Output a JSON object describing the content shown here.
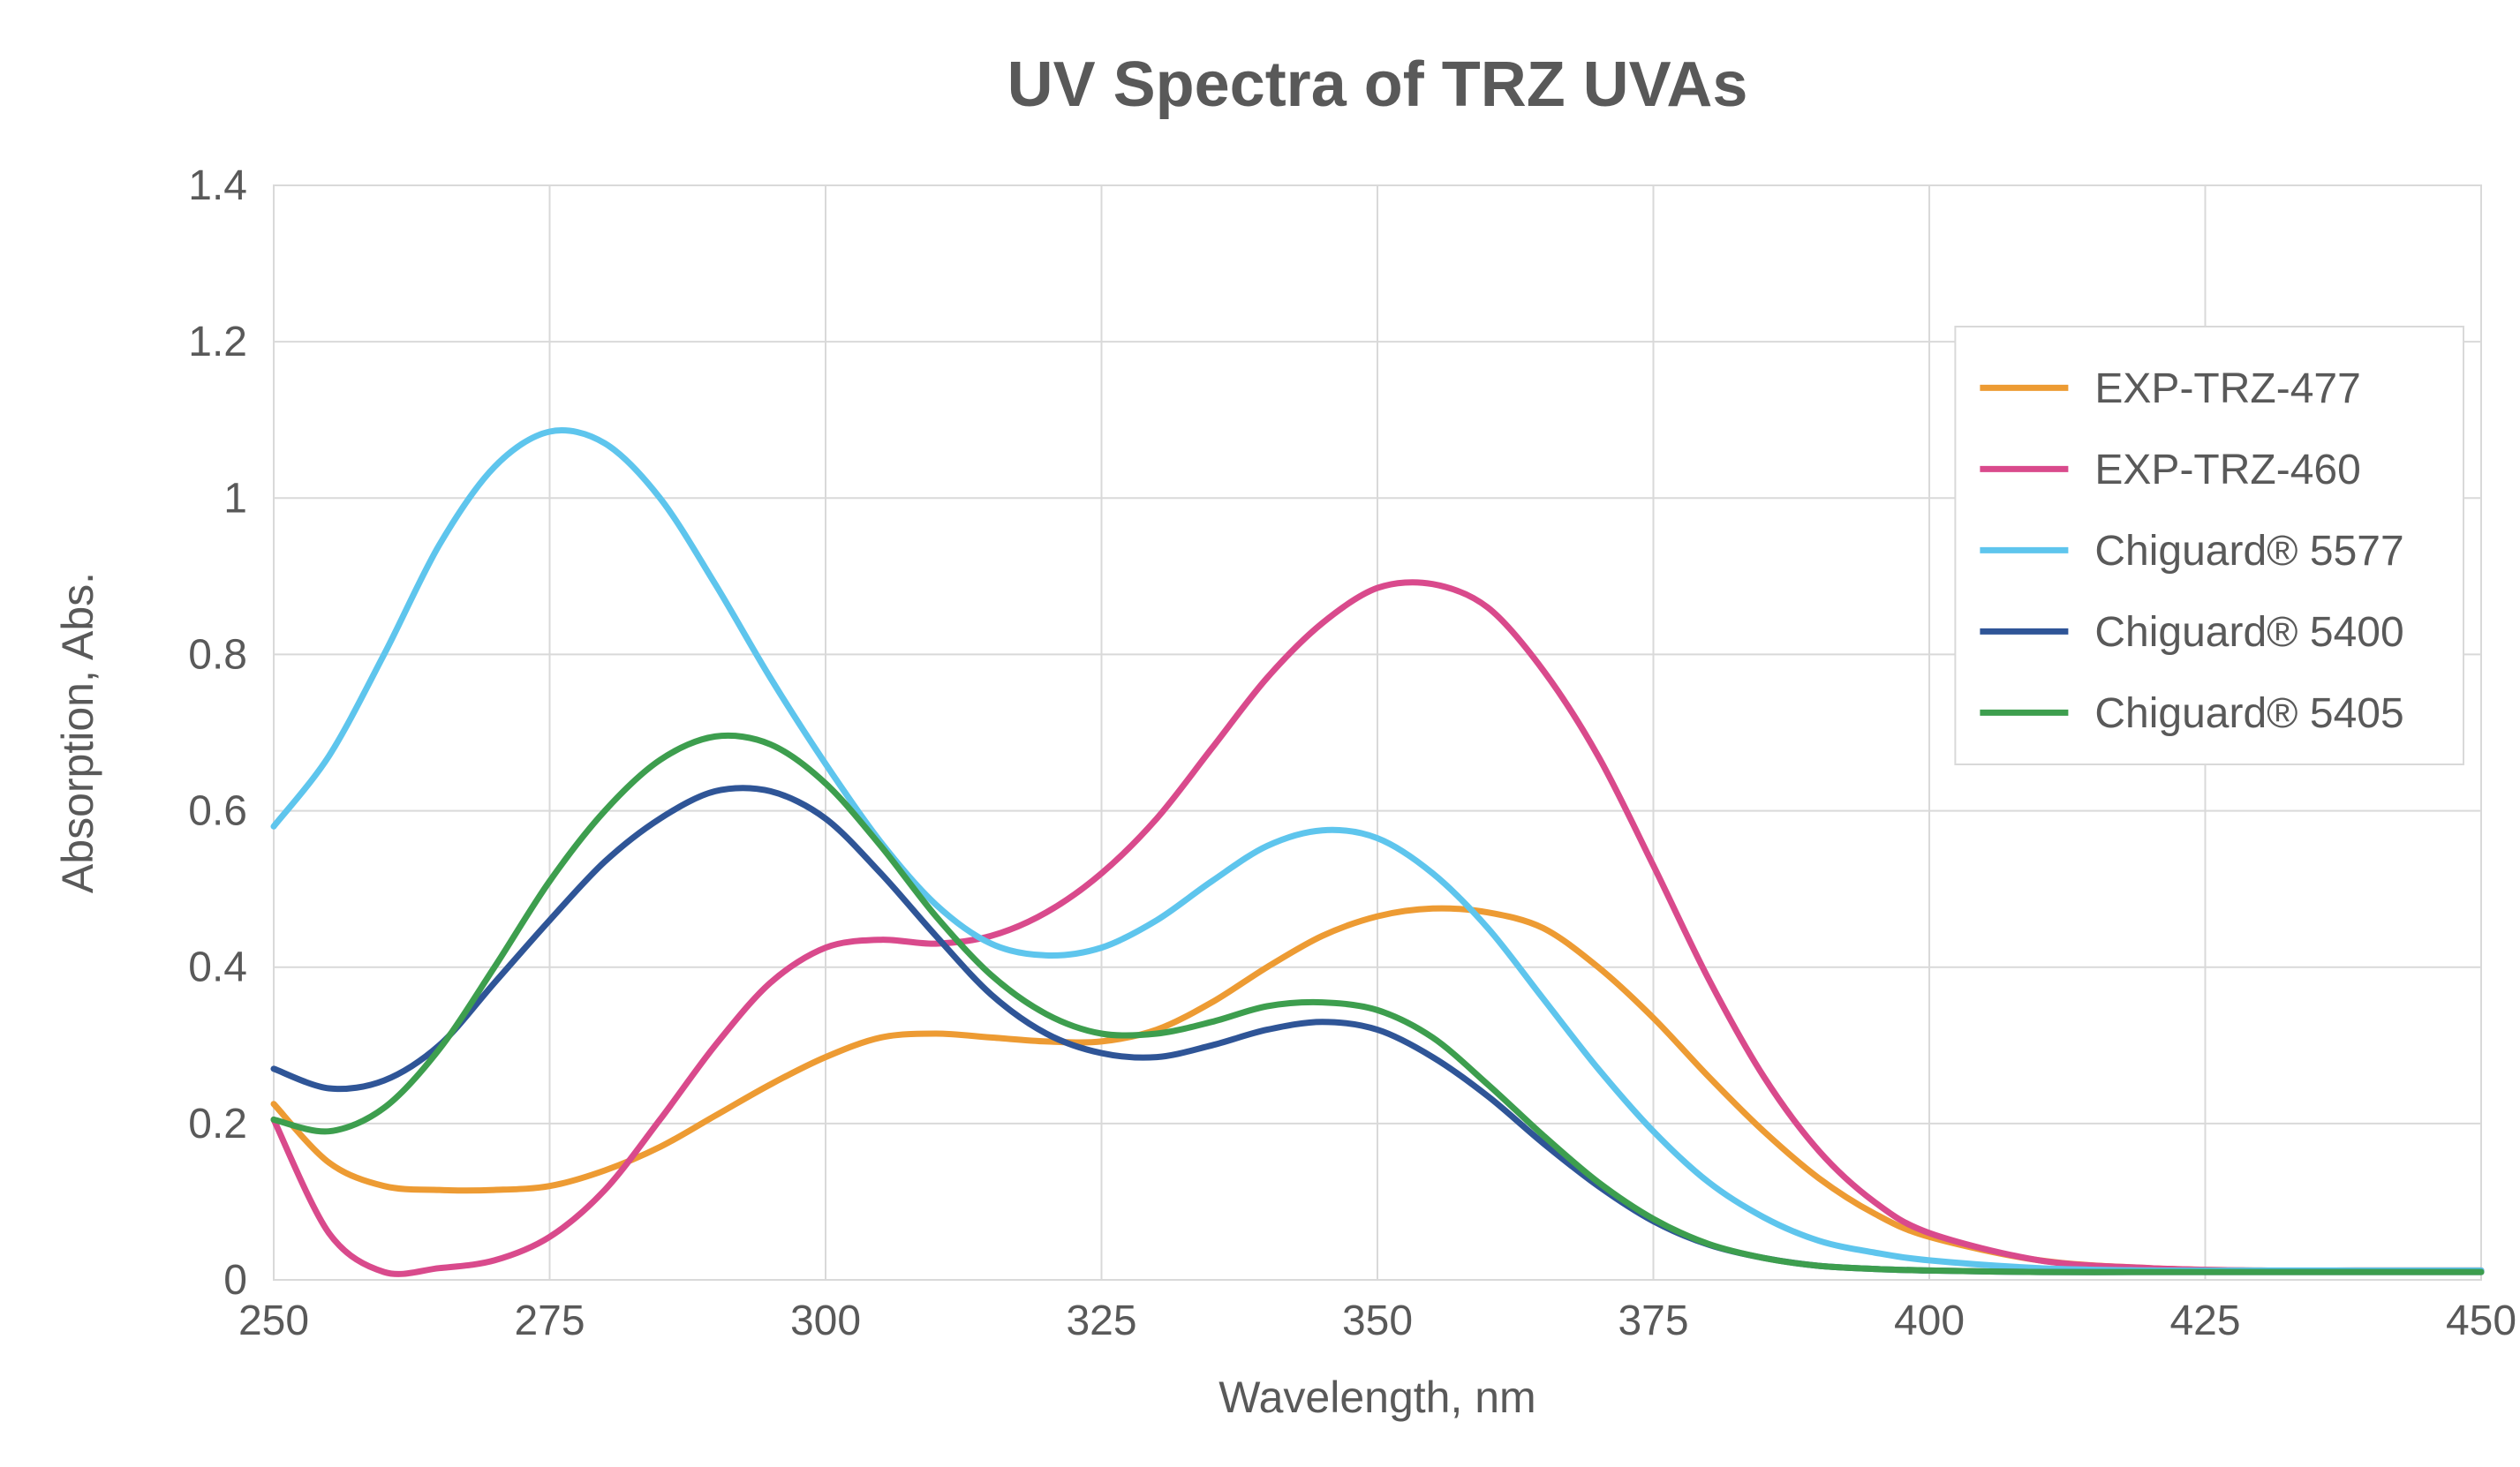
{
  "chart": {
    "type": "line",
    "title": "UV Spectra of TRZ UVAs",
    "title_fontsize": 72,
    "title_color": "#595959",
    "background_color": "#ffffff",
    "plot_background_color": "#ffffff",
    "grid_color": "#d9d9d9",
    "axis_text_color": "#595959",
    "tick_fontsize": 48,
    "axis_label_fontsize": 50,
    "legend_fontsize": 48,
    "line_width": 7,
    "x": {
      "label": "Wavelength, nm",
      "min": 250,
      "max": 450,
      "tick_step": 25,
      "ticks": [
        250,
        275,
        300,
        325,
        350,
        375,
        400,
        425,
        450
      ]
    },
    "y": {
      "label": "Absorption, Abs.",
      "min": 0,
      "max": 1.4,
      "tick_step": 0.2,
      "ticks": [
        0,
        0.2,
        0.4,
        0.6,
        0.8,
        1.0,
        1.2,
        1.4
      ]
    },
    "legend": {
      "position": "inside-top-right",
      "border_color": "#d9d9d9",
      "background_color": "#ffffff"
    },
    "series": [
      {
        "name": "EXP-TRZ-477",
        "color": "#ed9b33",
        "x": [
          250,
          255,
          260,
          265,
          270,
          275,
          280,
          285,
          290,
          295,
          300,
          305,
          310,
          315,
          320,
          325,
          330,
          335,
          340,
          345,
          350,
          355,
          360,
          365,
          370,
          375,
          380,
          385,
          390,
          395,
          400,
          410,
          420,
          430,
          440,
          450
        ],
        "y": [
          0.225,
          0.15,
          0.12,
          0.115,
          0.115,
          0.12,
          0.14,
          0.17,
          0.21,
          0.25,
          0.285,
          0.31,
          0.315,
          0.31,
          0.305,
          0.305,
          0.32,
          0.355,
          0.4,
          0.44,
          0.465,
          0.475,
          0.47,
          0.45,
          0.4,
          0.335,
          0.26,
          0.19,
          0.13,
          0.085,
          0.055,
          0.025,
          0.015,
          0.012,
          0.012,
          0.012
        ]
      },
      {
        "name": "EXP-TRZ-460",
        "color": "#d94a8c",
        "x": [
          250,
          255,
          260,
          265,
          270,
          275,
          280,
          285,
          290,
          295,
          300,
          305,
          310,
          315,
          320,
          325,
          330,
          335,
          340,
          345,
          350,
          355,
          360,
          365,
          370,
          375,
          380,
          385,
          390,
          395,
          400,
          410,
          420,
          430,
          440,
          450
        ],
        "y": [
          0.205,
          0.06,
          0.01,
          0.015,
          0.025,
          0.055,
          0.115,
          0.205,
          0.3,
          0.38,
          0.425,
          0.435,
          0.43,
          0.44,
          0.47,
          0.52,
          0.59,
          0.68,
          0.77,
          0.84,
          0.885,
          0.89,
          0.86,
          0.78,
          0.67,
          0.53,
          0.385,
          0.26,
          0.165,
          0.1,
          0.06,
          0.025,
          0.015,
          0.012,
          0.012,
          0.012
        ]
      },
      {
        "name": "Chiguard® 5577",
        "color": "#5ec5ed",
        "x": [
          250,
          255,
          260,
          265,
          270,
          275,
          280,
          285,
          290,
          295,
          300,
          305,
          310,
          315,
          320,
          325,
          330,
          335,
          340,
          345,
          350,
          355,
          360,
          365,
          370,
          375,
          380,
          385,
          390,
          395,
          400,
          410,
          420,
          430,
          440,
          450
        ],
        "y": [
          0.58,
          0.67,
          0.8,
          0.94,
          1.04,
          1.085,
          1.07,
          1.0,
          0.89,
          0.77,
          0.66,
          0.56,
          0.48,
          0.43,
          0.415,
          0.425,
          0.46,
          0.51,
          0.555,
          0.575,
          0.565,
          0.52,
          0.45,
          0.36,
          0.27,
          0.19,
          0.125,
          0.08,
          0.05,
          0.035,
          0.025,
          0.015,
          0.012,
          0.012,
          0.012,
          0.012
        ]
      },
      {
        "name": "Chiguard® 5400",
        "color": "#2f5597",
        "x": [
          250,
          255,
          260,
          265,
          270,
          275,
          280,
          285,
          290,
          295,
          300,
          305,
          310,
          315,
          320,
          325,
          330,
          335,
          340,
          345,
          350,
          355,
          360,
          365,
          370,
          375,
          380,
          385,
          390,
          395,
          400,
          410,
          420,
          430,
          440,
          450
        ],
        "y": [
          0.27,
          0.245,
          0.255,
          0.3,
          0.38,
          0.46,
          0.535,
          0.59,
          0.625,
          0.625,
          0.59,
          0.52,
          0.44,
          0.365,
          0.315,
          0.29,
          0.285,
          0.3,
          0.32,
          0.33,
          0.32,
          0.285,
          0.235,
          0.175,
          0.12,
          0.075,
          0.045,
          0.028,
          0.018,
          0.014,
          0.012,
          0.01,
          0.01,
          0.01,
          0.01,
          0.01
        ]
      },
      {
        "name": "Chiguard® 5405",
        "color": "#3d9e4e",
        "x": [
          250,
          255,
          260,
          265,
          270,
          275,
          280,
          285,
          290,
          295,
          300,
          305,
          310,
          315,
          320,
          325,
          330,
          335,
          340,
          345,
          350,
          355,
          360,
          365,
          370,
          375,
          380,
          385,
          390,
          395,
          400,
          410,
          420,
          430,
          440,
          450
        ],
        "y": [
          0.205,
          0.19,
          0.22,
          0.295,
          0.4,
          0.51,
          0.6,
          0.665,
          0.695,
          0.685,
          0.635,
          0.555,
          0.465,
          0.39,
          0.34,
          0.315,
          0.315,
          0.33,
          0.35,
          0.355,
          0.345,
          0.31,
          0.25,
          0.185,
          0.125,
          0.078,
          0.046,
          0.028,
          0.018,
          0.014,
          0.012,
          0.01,
          0.01,
          0.01,
          0.01,
          0.01
        ]
      }
    ]
  }
}
